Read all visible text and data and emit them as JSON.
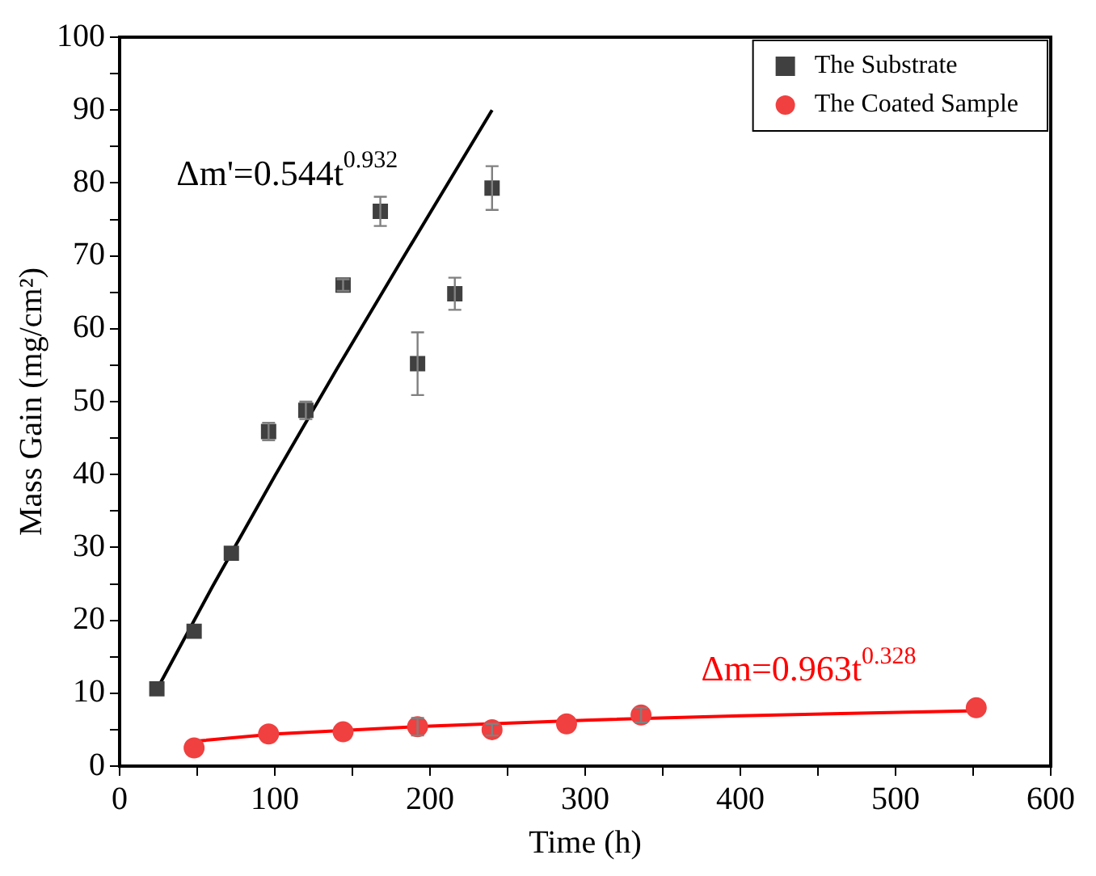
{
  "chart_data": {
    "type": "scatter",
    "xlabel": "Time (h)",
    "ylabel": "Mass Gain (mg/cm²)",
    "xlim": [
      0,
      600
    ],
    "ylim": [
      0,
      100
    ],
    "xticks": [
      0,
      {
        "value": 50,
        "label": null
      },
      100,
      {
        "value": 150,
        "label": null
      },
      200,
      {
        "value": 250,
        "label": null
      },
      300,
      {
        "value": 350,
        "label": null
      },
      400,
      {
        "value": 450,
        "label": null
      },
      500,
      {
        "value": 550,
        "label": null
      },
      600
    ],
    "yticks": [
      0,
      {
        "value": 5,
        "label": null
      },
      10,
      {
        "value": 15,
        "label": null
      },
      20,
      {
        "value": 25,
        "label": null
      },
      30,
      {
        "value": 35,
        "label": null
      },
      40,
      {
        "value": 45,
        "label": null
      },
      50,
      {
        "value": 55,
        "label": null
      },
      60,
      {
        "value": 65,
        "label": null
      },
      70,
      {
        "value": 75,
        "label": null
      },
      80,
      {
        "value": 85,
        "label": null
      },
      90,
      {
        "value": 95,
        "label": null
      },
      100
    ],
    "grid": false,
    "legend": "top right",
    "series": [
      {
        "name": "The Substrate",
        "type": "scatter",
        "marker": "square",
        "color": "#404040",
        "x": [
          24,
          48,
          72,
          96,
          120,
          144,
          168,
          192,
          216,
          240
        ],
        "values": [
          10.6,
          18.5,
          29.2,
          45.9,
          48.8,
          66,
          76.1,
          55.2,
          64.8,
          79.3
        ],
        "errors": [
          null,
          null,
          null,
          1.2,
          1.2,
          0.8,
          2,
          4.3,
          2.2,
          3
        ]
      },
      {
        "name": "The Coated Sample",
        "type": "scatter",
        "marker": "circle",
        "color": "#f04040",
        "x": [
          48,
          96,
          144,
          192,
          240,
          288,
          336,
          552
        ],
        "values": [
          2.5,
          4.4,
          4.7,
          5.4,
          5.0,
          5.8,
          7.0,
          8.0
        ],
        "errors": [
          null,
          null,
          null,
          1.2,
          0.8,
          null,
          1,
          null
        ]
      },
      {
        "type": "line",
        "marker": "none",
        "color": "#000000",
        "x": [
          24,
          60,
          100,
          140,
          180,
          240
        ],
        "values": [
          10.5,
          24.7,
          39.8,
          54.5,
          68.8,
          90
        ]
      },
      {
        "type": "line",
        "marker": "none",
        "color": "#ff0000",
        "x": [
          48,
          100,
          200,
          300,
          400,
          552
        ],
        "values": [
          3.4,
          4.4,
          5.5,
          6.3,
          6.9,
          7.6
        ]
      }
    ],
    "annotations": [
      "Δm'=0.544t$^{0.932}$",
      "Δm=0.963t$^{0.328}$"
    ]
  }
}
